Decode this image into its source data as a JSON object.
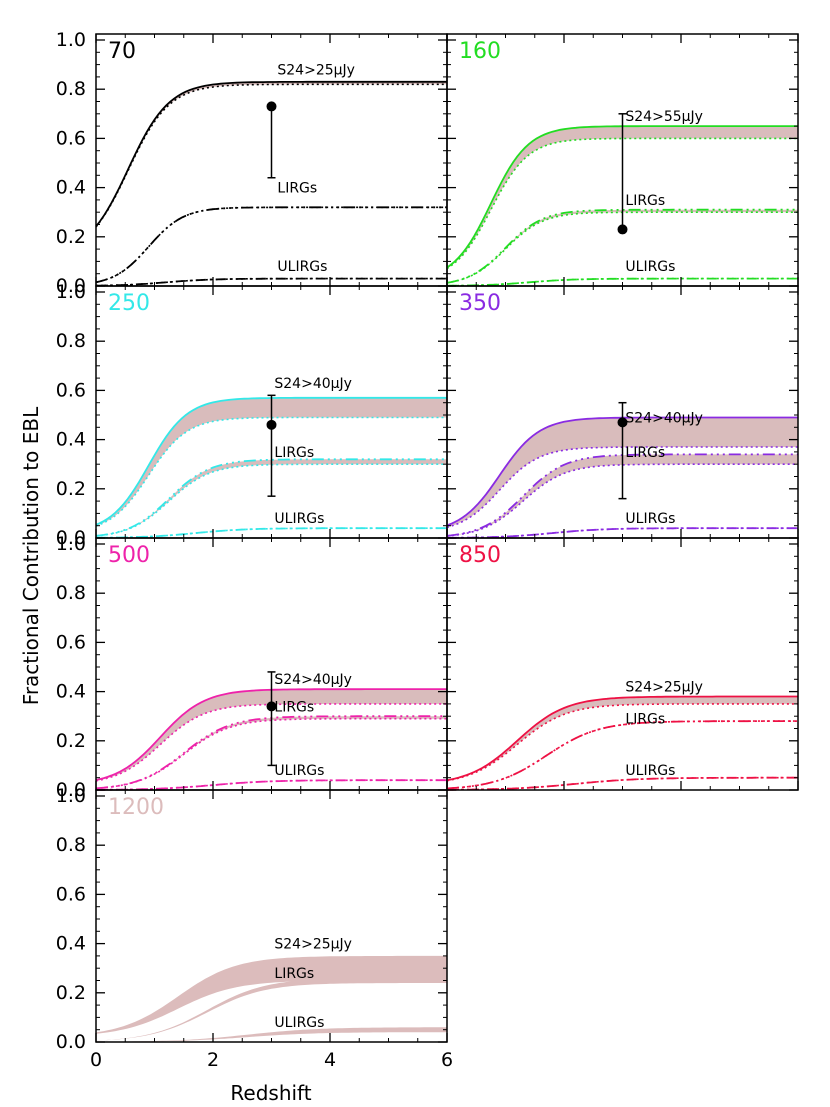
{
  "figure": {
    "ylabel": "Fractional Contribution to EBL",
    "xlabel": "Redshift",
    "yticks": [
      "0.0",
      "0.2",
      "0.4",
      "0.6",
      "0.8",
      "1.0"
    ],
    "xticks": [
      "0",
      "2",
      "4",
      "6"
    ]
  },
  "chart_data": [
    {
      "type": "line",
      "panel": "70",
      "color": "#000000",
      "xlim": [
        0,
        6
      ],
      "ylim": [
        0,
        1
      ],
      "labels": {
        "total": "S24>25μJy",
        "lirg": "LIRGs",
        "ulirg": "ULIRGs"
      },
      "label_pos": {
        "total": [
          3.1,
          0.86
        ],
        "lirg": [
          3.1,
          0.38
        ],
        "ulirg": [
          3.1,
          0.06
        ]
      },
      "series": [
        {
          "role": "total",
          "plateau": [
            0.82,
            0.83
          ],
          "z0": [
            0.12,
            0.12
          ],
          "zhalf": 0.55,
          "width": 0.35
        },
        {
          "role": "lirg",
          "plateau": [
            0.32,
            0.32
          ],
          "z0": [
            0.0,
            0.0
          ],
          "zhalf": 0.9,
          "width": 0.3
        },
        {
          "role": "ulirg",
          "plateau": [
            0.03,
            0.03
          ],
          "z0": [
            0.0,
            0.0
          ],
          "zhalf": 1.2,
          "width": 0.4
        }
      ],
      "marker": {
        "x": 3.0,
        "y": 0.73,
        "low": 0.44,
        "high": 0.73
      }
    },
    {
      "type": "line",
      "panel": "160",
      "color": "#22dd22",
      "xlim": [
        0,
        6
      ],
      "ylim": [
        0,
        1
      ],
      "labels": {
        "total": "S24>55μJy",
        "lirg": "LIRGs",
        "ulirg": "ULIRGs"
      },
      "label_pos": {
        "total": [
          3.05,
          0.67
        ],
        "lirg": [
          3.05,
          0.33
        ],
        "ulirg": [
          3.05,
          0.06
        ]
      },
      "series": [
        {
          "role": "total",
          "plateau": [
            0.6,
            0.65
          ],
          "z0": [
            0.02,
            0.02
          ],
          "zhalf": 0.75,
          "width": 0.32
        },
        {
          "role": "lirg",
          "plateau": [
            0.3,
            0.31
          ],
          "z0": [
            0.0,
            0.0
          ],
          "zhalf": 1.0,
          "width": 0.32
        },
        {
          "role": "ulirg",
          "plateau": [
            0.03,
            0.03
          ],
          "z0": [
            0.0,
            0.0
          ],
          "zhalf": 1.4,
          "width": 0.4
        }
      ],
      "marker": {
        "x": 3.0,
        "y": 0.23,
        "low": 0.23,
        "high": 0.7
      }
    },
    {
      "type": "line",
      "panel": "250",
      "color": "#33e8e8",
      "xlim": [
        0,
        6
      ],
      "ylim": [
        0,
        1
      ],
      "labels": {
        "total": "S24>40μJy",
        "lirg": "LIRGs",
        "ulirg": "ULIRGs"
      },
      "label_pos": {
        "total": [
          3.05,
          0.61
        ],
        "lirg": [
          3.05,
          0.33
        ],
        "ulirg": [
          3.05,
          0.06
        ]
      },
      "series": [
        {
          "role": "total",
          "plateau": [
            0.49,
            0.57
          ],
          "z0": [
            0.02,
            0.02
          ],
          "zhalf": 0.9,
          "width": 0.33
        },
        {
          "role": "lirg",
          "plateau": [
            0.3,
            0.32
          ],
          "z0": [
            0.0,
            0.0
          ],
          "zhalf": 1.25,
          "width": 0.35
        },
        {
          "role": "ulirg",
          "plateau": [
            0.04,
            0.04
          ],
          "z0": [
            0.0,
            0.0
          ],
          "zhalf": 1.7,
          "width": 0.45
        }
      ],
      "marker": {
        "x": 3.0,
        "y": 0.46,
        "low": 0.17,
        "high": 0.58
      }
    },
    {
      "type": "line",
      "panel": "350",
      "color": "#8a2be2",
      "xlim": [
        0,
        6
      ],
      "ylim": [
        0,
        1
      ],
      "labels": {
        "total": "S24>40μJy",
        "lirg": "LIRGs",
        "ulirg": "ULIRGs"
      },
      "label_pos": {
        "total": [
          3.05,
          0.47
        ],
        "lirg": [
          3.05,
          0.33
        ],
        "ulirg": [
          3.05,
          0.06
        ]
      },
      "series": [
        {
          "role": "total",
          "plateau": [
            0.37,
            0.49
          ],
          "z0": [
            0.02,
            0.02
          ],
          "zhalf": 0.9,
          "width": 0.34
        },
        {
          "role": "lirg",
          "plateau": [
            0.3,
            0.34
          ],
          "z0": [
            0.0,
            0.0
          ],
          "zhalf": 1.3,
          "width": 0.36
        },
        {
          "role": "ulirg",
          "plateau": [
            0.04,
            0.04
          ],
          "z0": [
            0.0,
            0.0
          ],
          "zhalf": 1.8,
          "width": 0.45
        }
      ],
      "marker": {
        "x": 3.0,
        "y": 0.47,
        "low": 0.16,
        "high": 0.55
      }
    },
    {
      "type": "line",
      "panel": "500",
      "color": "#ee22aa",
      "xlim": [
        0,
        6
      ],
      "ylim": [
        0,
        1
      ],
      "labels": {
        "total": "S24>40μJy",
        "lirg": "LIRGs",
        "ulirg": "ULIRGs"
      },
      "label_pos": {
        "total": [
          3.05,
          0.43
        ],
        "lirg": [
          3.05,
          0.32
        ],
        "ulirg": [
          3.05,
          0.06
        ]
      },
      "series": [
        {
          "role": "total",
          "plateau": [
            0.35,
            0.41
          ],
          "z0": [
            0.02,
            0.02
          ],
          "zhalf": 1.1,
          "width": 0.38
        },
        {
          "role": "lirg",
          "plateau": [
            0.29,
            0.3
          ],
          "z0": [
            0.0,
            0.0
          ],
          "zhalf": 1.5,
          "width": 0.4
        },
        {
          "role": "ulirg",
          "plateau": [
            0.04,
            0.04
          ],
          "z0": [
            0.0,
            0.0
          ],
          "zhalf": 2.0,
          "width": 0.5
        }
      ],
      "marker": {
        "x": 3.0,
        "y": 0.34,
        "low": 0.1,
        "high": 0.48
      }
    },
    {
      "type": "line",
      "panel": "850",
      "color": "#ee1144",
      "xlim": [
        0,
        6
      ],
      "ylim": [
        0,
        1
      ],
      "labels": {
        "total": "S24>25μJy",
        "lirg": "LIRGs",
        "ulirg": "ULIRGs"
      },
      "label_pos": {
        "total": [
          3.05,
          0.4
        ],
        "lirg": [
          3.05,
          0.27
        ],
        "ulirg": [
          3.05,
          0.06
        ]
      },
      "series": [
        {
          "role": "total",
          "plateau": [
            0.35,
            0.38
          ],
          "z0": [
            0.02,
            0.02
          ],
          "zhalf": 1.2,
          "width": 0.42
        },
        {
          "role": "lirg",
          "plateau": [
            0.28,
            0.28
          ],
          "z0": [
            0.0,
            0.0
          ],
          "zhalf": 1.7,
          "width": 0.45
        },
        {
          "role": "ulirg",
          "plateau": [
            0.05,
            0.05
          ],
          "z0": [
            0.0,
            0.0
          ],
          "zhalf": 2.2,
          "width": 0.55
        }
      ]
    },
    {
      "type": "area",
      "panel": "1200",
      "color": "#dcbcbc",
      "xlim": [
        0,
        6
      ],
      "ylim": [
        0,
        1
      ],
      "labels": {
        "total": "S24>25μJy",
        "lirg": "LIRGs",
        "ulirg": "ULIRGs"
      },
      "label_pos": {
        "total": [
          3.05,
          0.38
        ],
        "lirg": [
          3.05,
          0.26
        ],
        "ulirg": [
          3.05,
          0.06
        ]
      },
      "series": [
        {
          "role": "total",
          "plateau": [
            0.25,
            0.35
          ],
          "z0": [
            0.02,
            0.02
          ],
          "zhalf": 1.4,
          "width": 0.5
        },
        {
          "role": "lirg",
          "plateau": [
            0.24,
            0.26
          ],
          "z0": [
            0.0,
            0.0
          ],
          "zhalf": 1.9,
          "width": 0.5
        },
        {
          "role": "ulirg",
          "plateau": [
            0.04,
            0.06
          ],
          "z0": [
            0.0,
            0.0
          ],
          "zhalf": 2.6,
          "width": 0.6
        }
      ]
    }
  ]
}
